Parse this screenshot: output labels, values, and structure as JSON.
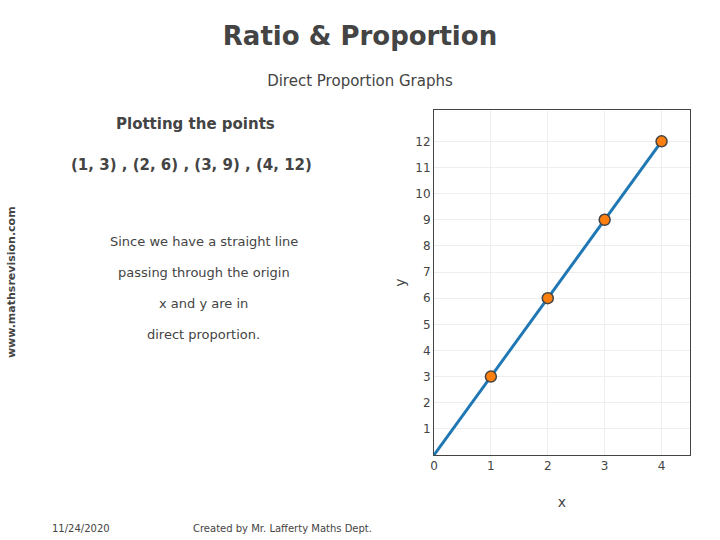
{
  "chart_data": {
    "type": "scatter",
    "title": "Ratio & Proportion",
    "subtitle": "Direct Proportion Graphs",
    "x_label": "x",
    "y_label": "y",
    "annotations": [
      "Plotting the points",
      "(1, 3) , (2, 6) , (3, 9) , (4, 12)",
      "Since we have a straight line",
      "passing through the origin",
      "x and y are in",
      "direct proportion.",
      "www.mathsrevision.com",
      "11/24/2020",
      "Created by Mr. Lafferty Maths Dept."
    ],
    "series": [
      {
        "type": "line",
        "x": [
          0,
          4
        ],
        "values": [
          0,
          12
        ]
      },
      {
        "type": "scatter",
        "marker": "circle",
        "x": [
          1,
          2,
          3,
          4
        ],
        "values": [
          3,
          6,
          9,
          12
        ]
      }
    ],
    "xlim": [
      0,
      4.5
    ],
    "xticks": [
      0,
      1,
      2,
      3,
      4
    ],
    "ylim": [
      0,
      13.2
    ],
    "yticks": [
      1,
      2,
      3,
      4,
      5,
      6,
      7,
      8,
      9,
      10,
      11,
      12
    ],
    "grid": true
  }
}
